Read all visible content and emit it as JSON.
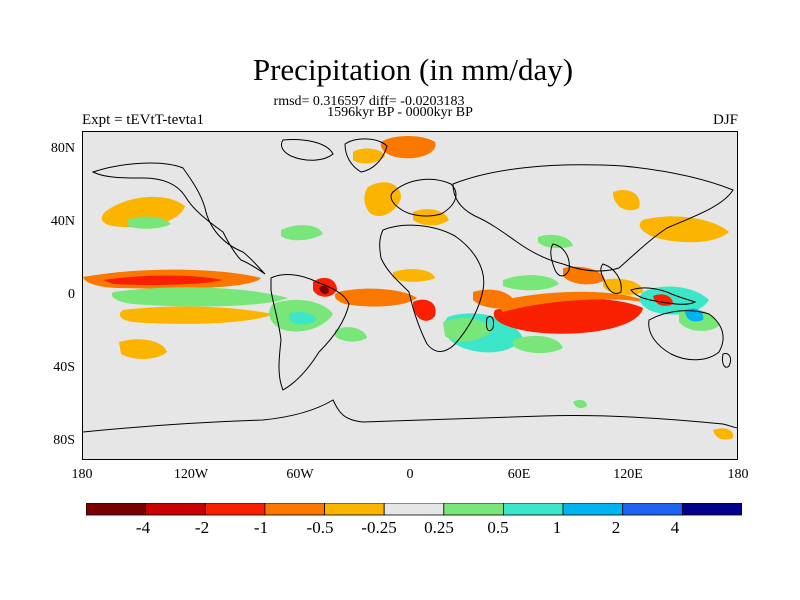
{
  "title": "Precipitation (in mm/day)",
  "stats_line": "rmsd= 0.316597 diff= -0.0203183",
  "period_line": "1596kyr BP - 0000kyr BP",
  "experiment_label": "Expt = tEVtT-tevta1",
  "season_label": "DJF",
  "lat_ticks": [
    "80N",
    "40N",
    "0",
    "40S",
    "80S"
  ],
  "lon_ticks": [
    "180",
    "120W",
    "60W",
    "0",
    "60E",
    "120E",
    "180"
  ],
  "colorbar": {
    "colors": [
      "#7a0000",
      "#c80000",
      "#f82000",
      "#fa7800",
      "#fbb400",
      "#e6e6e6",
      "#78e678",
      "#3ce6c8",
      "#00b4f0",
      "#1e64f0",
      "#00008c"
    ],
    "labels": [
      "-4",
      "-2",
      "-1",
      "-0.5",
      "-0.25",
      "0.25",
      "0.5",
      "1",
      "2",
      "4"
    ]
  },
  "colors": {
    "background": "#e6e6e6",
    "dry_strong": "#f82000",
    "dry_moderate": "#fa7800",
    "dry_weak": "#fbb400",
    "wet_weak": "#78e678",
    "wet_moderate": "#3ce6c8",
    "wet_strong": "#00b4f0"
  }
}
